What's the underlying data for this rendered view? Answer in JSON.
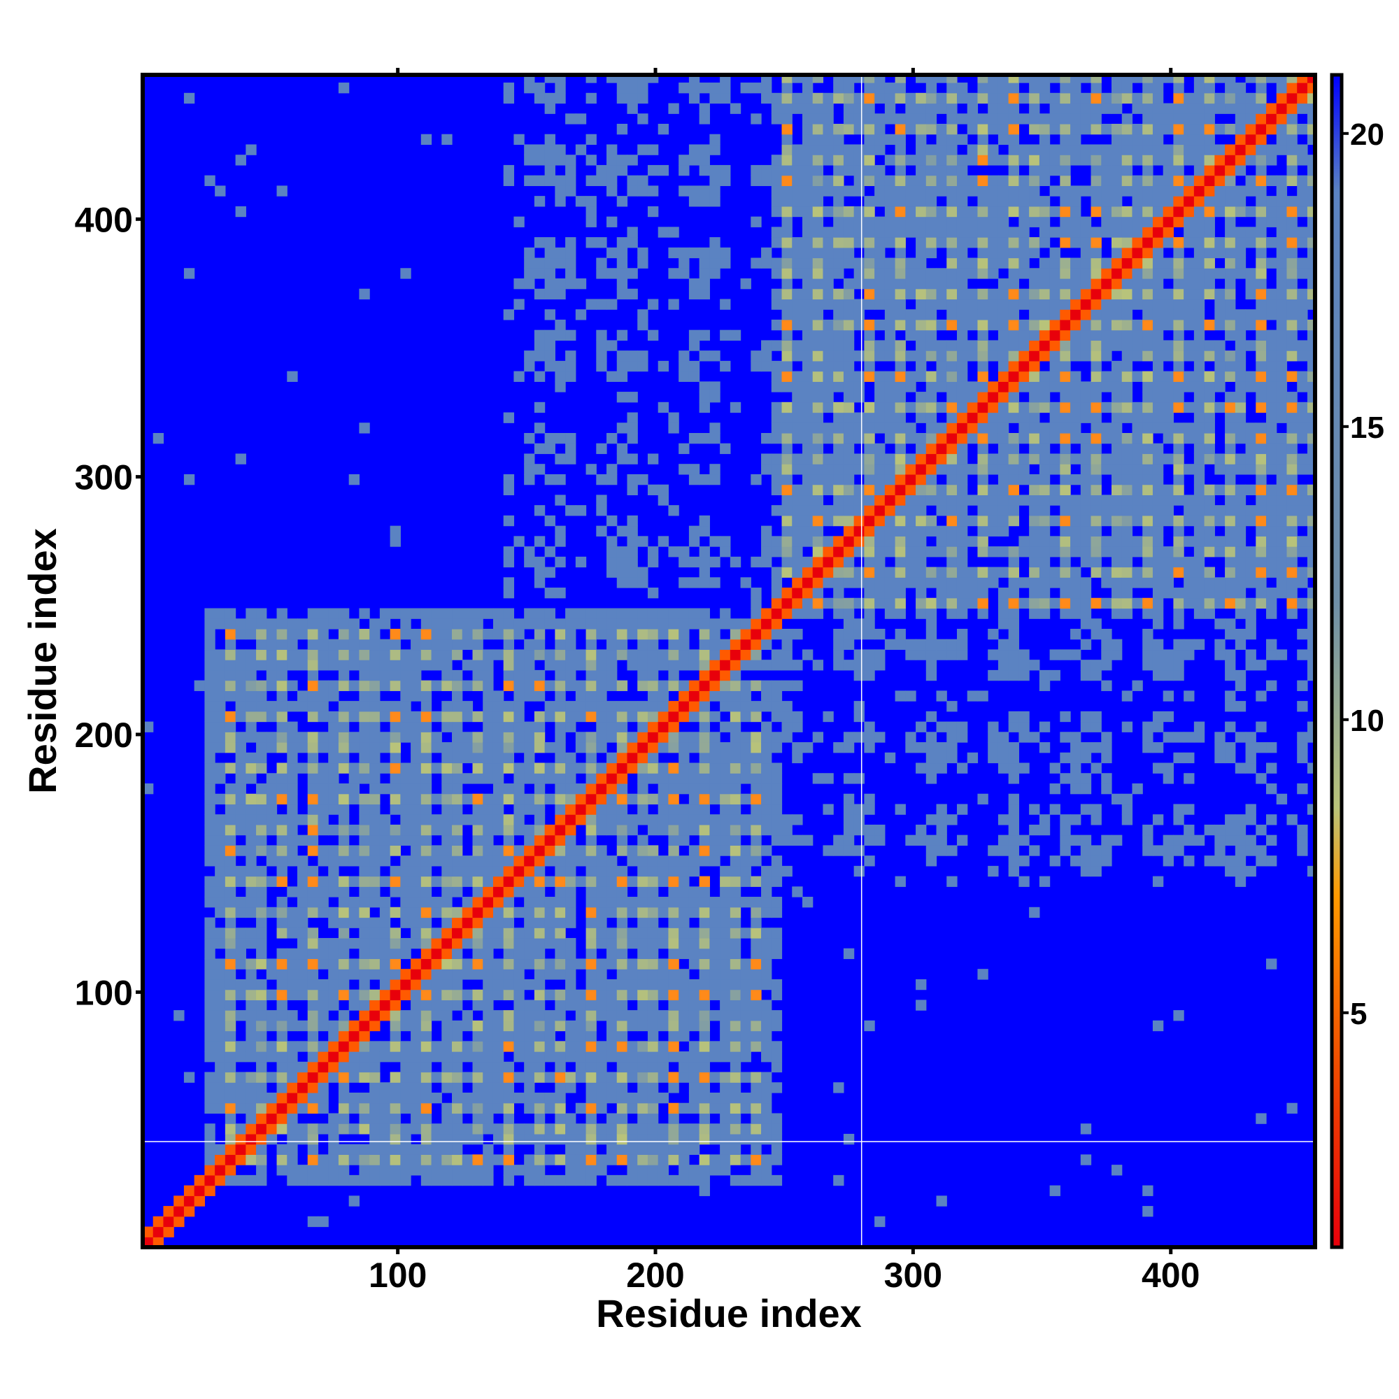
{
  "chart_data": {
    "type": "heatmap",
    "title": "",
    "xlabel": "Residue index",
    "ylabel": "Residue index",
    "xlim": [
      1,
      456
    ],
    "ylim": [
      1,
      456
    ],
    "x_ticks": [
      100,
      200,
      300,
      400
    ],
    "y_ticks": [
      100,
      200,
      300,
      400
    ],
    "x_tick_labels": [
      "100",
      "200",
      "300",
      "400"
    ],
    "y_tick_labels": [
      "100",
      "200",
      "300",
      "400"
    ],
    "colorbar": {
      "range": [
        1,
        21
      ],
      "ticks": [
        5,
        10,
        15,
        20
      ],
      "tick_labels": [
        "5",
        "10",
        "15",
        "20"
      ],
      "stops": [
        {
          "value": 1,
          "color": "#e8000b"
        },
        {
          "value": 4,
          "color": "#f04a00"
        },
        {
          "value": 7,
          "color": "#ff9a00"
        },
        {
          "value": 8.5,
          "color": "#b9c37a"
        },
        {
          "value": 12,
          "color": "#6f8fa8"
        },
        {
          "value": 19,
          "color": "#5b83c2"
        },
        {
          "value": 21,
          "color": "#0000ff"
        }
      ]
    },
    "background_color": "#0000ff",
    "contact_color": "#5b83c2",
    "diagonal_color": "#e8000b",
    "domain_blocks": [
      {
        "from": 25,
        "to": 245,
        "label": ""
      },
      {
        "from": 245,
        "to": 456,
        "label": ""
      }
    ],
    "cross_domain_region": {
      "x": [
        245,
        456
      ],
      "y": [
        140,
        245
      ]
    },
    "reference_lines": {
      "x": 280,
      "y": 42
    }
  }
}
